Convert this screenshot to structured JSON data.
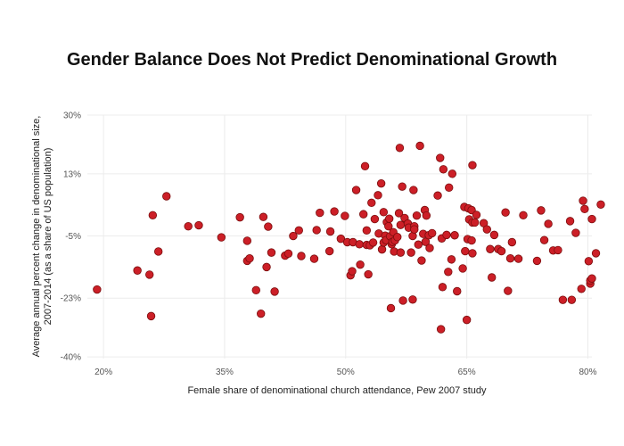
{
  "chart_data": {
    "type": "scatter",
    "title": "Gender Balance Does Not Predict Denominational Growth",
    "xlabel": "Female share of denominational church attendance, Pew 2007 study",
    "ylabel_line1": "Average annual percent change in denominational size,",
    "ylabel_line2": "2007-2014 (as a share of US population)",
    "xlim": [
      18,
      80.5
    ],
    "ylim": [
      -40.5,
      30
    ],
    "x_ticks": [
      {
        "value": 20,
        "label": "20%"
      },
      {
        "value": 35,
        "label": "35%"
      },
      {
        "value": 50,
        "label": "50%"
      },
      {
        "value": 65,
        "label": "65%"
      },
      {
        "value": 80,
        "label": "80%"
      }
    ],
    "y_ticks": [
      {
        "value": 30,
        "label": "30%"
      },
      {
        "value": 13,
        "label": "13%"
      },
      {
        "value": -5,
        "label": "-5%"
      },
      {
        "value": -23,
        "label": "-23%"
      },
      {
        "value": -40,
        "label": "-40%"
      }
    ],
    "grid": true,
    "marker_color": "#cc1f27",
    "points": [
      [
        19.2,
        -20.5
      ],
      [
        24.2,
        -15.0
      ],
      [
        25.7,
        -16.2
      ],
      [
        25.9,
        -28.2
      ],
      [
        26.1,
        1.0
      ],
      [
        26.8,
        -9.5
      ],
      [
        27.8,
        6.5
      ],
      [
        30.5,
        -2.2
      ],
      [
        31.8,
        -1.9
      ],
      [
        34.6,
        -5.4
      ],
      [
        36.9,
        0.4
      ],
      [
        37.8,
        -6.4
      ],
      [
        37.8,
        -12.2
      ],
      [
        38.1,
        -11.5
      ],
      [
        38.9,
        -20.7
      ],
      [
        39.5,
        -27.5
      ],
      [
        39.8,
        0.5
      ],
      [
        40.2,
        -14.0
      ],
      [
        40.4,
        -2.3
      ],
      [
        40.8,
        -9.8
      ],
      [
        41.2,
        -21.1
      ],
      [
        42.5,
        -10.7
      ],
      [
        42.9,
        -10.1
      ],
      [
        43.5,
        -5.0
      ],
      [
        44.2,
        -3.4
      ],
      [
        44.5,
        -10.8
      ],
      [
        46.1,
        -11.6
      ],
      [
        46.4,
        -3.3
      ],
      [
        46.8,
        1.7
      ],
      [
        48.0,
        -9.4
      ],
      [
        48.1,
        -3.7
      ],
      [
        48.6,
        2.1
      ],
      [
        49.4,
        -5.8
      ],
      [
        49.9,
        0.8
      ],
      [
        50.2,
        -6.8
      ],
      [
        50.6,
        -16.4
      ],
      [
        50.8,
        -15.2
      ],
      [
        50.9,
        -6.8
      ],
      [
        51.3,
        8.3
      ],
      [
        51.7,
        -7.4
      ],
      [
        51.8,
        -13.3
      ],
      [
        52.2,
        1.3
      ],
      [
        52.4,
        15.2
      ],
      [
        52.6,
        -3.4
      ],
      [
        52.6,
        -7.6
      ],
      [
        52.8,
        -16.1
      ],
      [
        53.0,
        -7.7
      ],
      [
        53.2,
        4.6
      ],
      [
        53.4,
        -6.9
      ],
      [
        53.6,
        -0.1
      ],
      [
        54.0,
        6.8
      ],
      [
        54.1,
        -4.3
      ],
      [
        54.4,
        10.2
      ],
      [
        54.5,
        -8.9
      ],
      [
        54.7,
        1.9
      ],
      [
        54.7,
        -6.9
      ],
      [
        54.9,
        -4.9
      ],
      [
        55.0,
        -6.2
      ],
      [
        55.1,
        -1.0
      ],
      [
        55.3,
        -2.2
      ],
      [
        55.4,
        0.0
      ],
      [
        55.5,
        -5.1
      ],
      [
        55.6,
        -25.9
      ],
      [
        55.7,
        -7.4
      ],
      [
        55.8,
        -6.7
      ],
      [
        55.9,
        -3.9
      ],
      [
        56.0,
        -9.5
      ],
      [
        56.1,
        -6.3
      ],
      [
        56.4,
        -5.3
      ],
      [
        56.6,
        1.6
      ],
      [
        56.7,
        20.5
      ],
      [
        56.8,
        -9.8
      ],
      [
        56.8,
        -1.8
      ],
      [
        57.0,
        9.3
      ],
      [
        57.1,
        -23.7
      ],
      [
        57.3,
        0.2
      ],
      [
        57.7,
        -1.4
      ],
      [
        57.8,
        -2.6
      ],
      [
        58.1,
        -9.8
      ],
      [
        58.3,
        -23.4
      ],
      [
        58.3,
        -5.0
      ],
      [
        58.4,
        8.3
      ],
      [
        58.5,
        -2.2
      ],
      [
        58.5,
        -3.1
      ],
      [
        58.8,
        0.9
      ],
      [
        59.0,
        -7.5
      ],
      [
        59.2,
        21.1
      ],
      [
        59.4,
        -12.1
      ],
      [
        59.6,
        -4.4
      ],
      [
        59.8,
        2.5
      ],
      [
        59.9,
        -6.7
      ],
      [
        60.0,
        0.9
      ],
      [
        60.3,
        -4.8
      ],
      [
        60.4,
        -8.5
      ],
      [
        60.7,
        -4.2
      ],
      [
        61.4,
        6.7
      ],
      [
        61.7,
        17.6
      ],
      [
        61.8,
        -32.0
      ],
      [
        61.9,
        -5.7
      ],
      [
        62.0,
        -19.8
      ],
      [
        62.1,
        14.3
      ],
      [
        62.5,
        -4.7
      ],
      [
        62.7,
        -15.4
      ],
      [
        62.8,
        9.0
      ],
      [
        63.1,
        -11.8
      ],
      [
        63.2,
        13.0
      ],
      [
        63.5,
        -4.8
      ],
      [
        63.8,
        -21.0
      ],
      [
        64.5,
        -14.4
      ],
      [
        64.7,
        3.4
      ],
      [
        64.8,
        -9.4
      ],
      [
        65.0,
        -29.3
      ],
      [
        65.1,
        -5.9
      ],
      [
        65.2,
        3.0
      ],
      [
        65.3,
        -0.2
      ],
      [
        65.6,
        2.5
      ],
      [
        65.6,
        -6.3
      ],
      [
        65.7,
        15.5
      ],
      [
        65.7,
        -1.1
      ],
      [
        65.7,
        -10.0
      ],
      [
        66.0,
        -1.1
      ],
      [
        66.2,
        1.1
      ],
      [
        67.1,
        -1.3
      ],
      [
        67.5,
        -3.1
      ],
      [
        67.9,
        -8.8
      ],
      [
        68.1,
        -17.0
      ],
      [
        68.4,
        -4.7
      ],
      [
        68.9,
        -8.8
      ],
      [
        69.3,
        -9.4
      ],
      [
        69.8,
        1.8
      ],
      [
        70.1,
        -20.9
      ],
      [
        70.4,
        -11.5
      ],
      [
        70.6,
        -6.8
      ],
      [
        71.4,
        -11.6
      ],
      [
        72.0,
        1.0
      ],
      [
        73.7,
        -12.2
      ],
      [
        74.2,
        2.4
      ],
      [
        74.6,
        -6.2
      ],
      [
        75.1,
        -1.5
      ],
      [
        75.7,
        -9.2
      ],
      [
        76.3,
        -9.1
      ],
      [
        76.9,
        -23.5
      ],
      [
        77.8,
        -0.7
      ],
      [
        78.0,
        -23.5
      ],
      [
        78.5,
        -4.1
      ],
      [
        79.2,
        -20.3
      ],
      [
        79.4,
        5.2
      ],
      [
        79.6,
        2.8
      ],
      [
        80.1,
        -12.3
      ],
      [
        80.3,
        -18.8
      ],
      [
        80.3,
        -17.9
      ],
      [
        80.5,
        -17.3
      ],
      [
        80.5,
        -0.1
      ],
      [
        81.0,
        -10.0
      ],
      [
        81.6,
        4.1
      ]
    ]
  }
}
